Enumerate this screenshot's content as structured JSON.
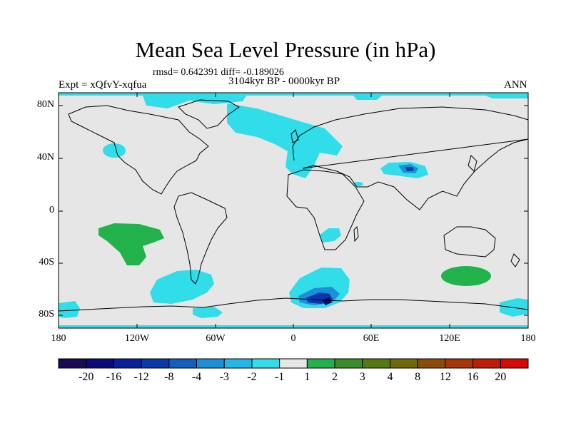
{
  "title": "Mean Sea Level Pressure (in hPa)",
  "stats": "rmsd= 0.642391 diff= -0.189026",
  "period": "3104kyr BP - 0000kyr BP",
  "experiment": "Expt = xQfvY-xqfua",
  "season": "ANN",
  "axes": {
    "y_ticks": [
      "80N",
      "40N",
      "0",
      "40S",
      "80S"
    ],
    "x_ticks": [
      "180",
      "120W",
      "60W",
      "0",
      "60E",
      "120E",
      "180"
    ]
  },
  "colorbar": {
    "labels": [
      "-20",
      "-16",
      "-12",
      "-8",
      "-4",
      "-3",
      "-2",
      "-1",
      "1",
      "2",
      "3",
      "4",
      "8",
      "12",
      "16",
      "20"
    ],
    "colors": [
      "#1a0a55",
      "#0a0a78",
      "#08209a",
      "#0838aa",
      "#1060c0",
      "#1a90d8",
      "#20b8e8",
      "#30dde8",
      "#e6e6e6",
      "#22b24c",
      "#3a8c28",
      "#557a12",
      "#6e6a08",
      "#8a4c06",
      "#a83604",
      "#c01e02",
      "#d80a00"
    ]
  },
  "map_colors": {
    "neutral": "#e6e6e6",
    "minus1": "#30dde8",
    "minus2": "#20b8e8",
    "minus3": "#1a90d8",
    "minus4": "#1060c0",
    "minus8": "#0838aa",
    "plus1": "#22b24c"
  }
}
